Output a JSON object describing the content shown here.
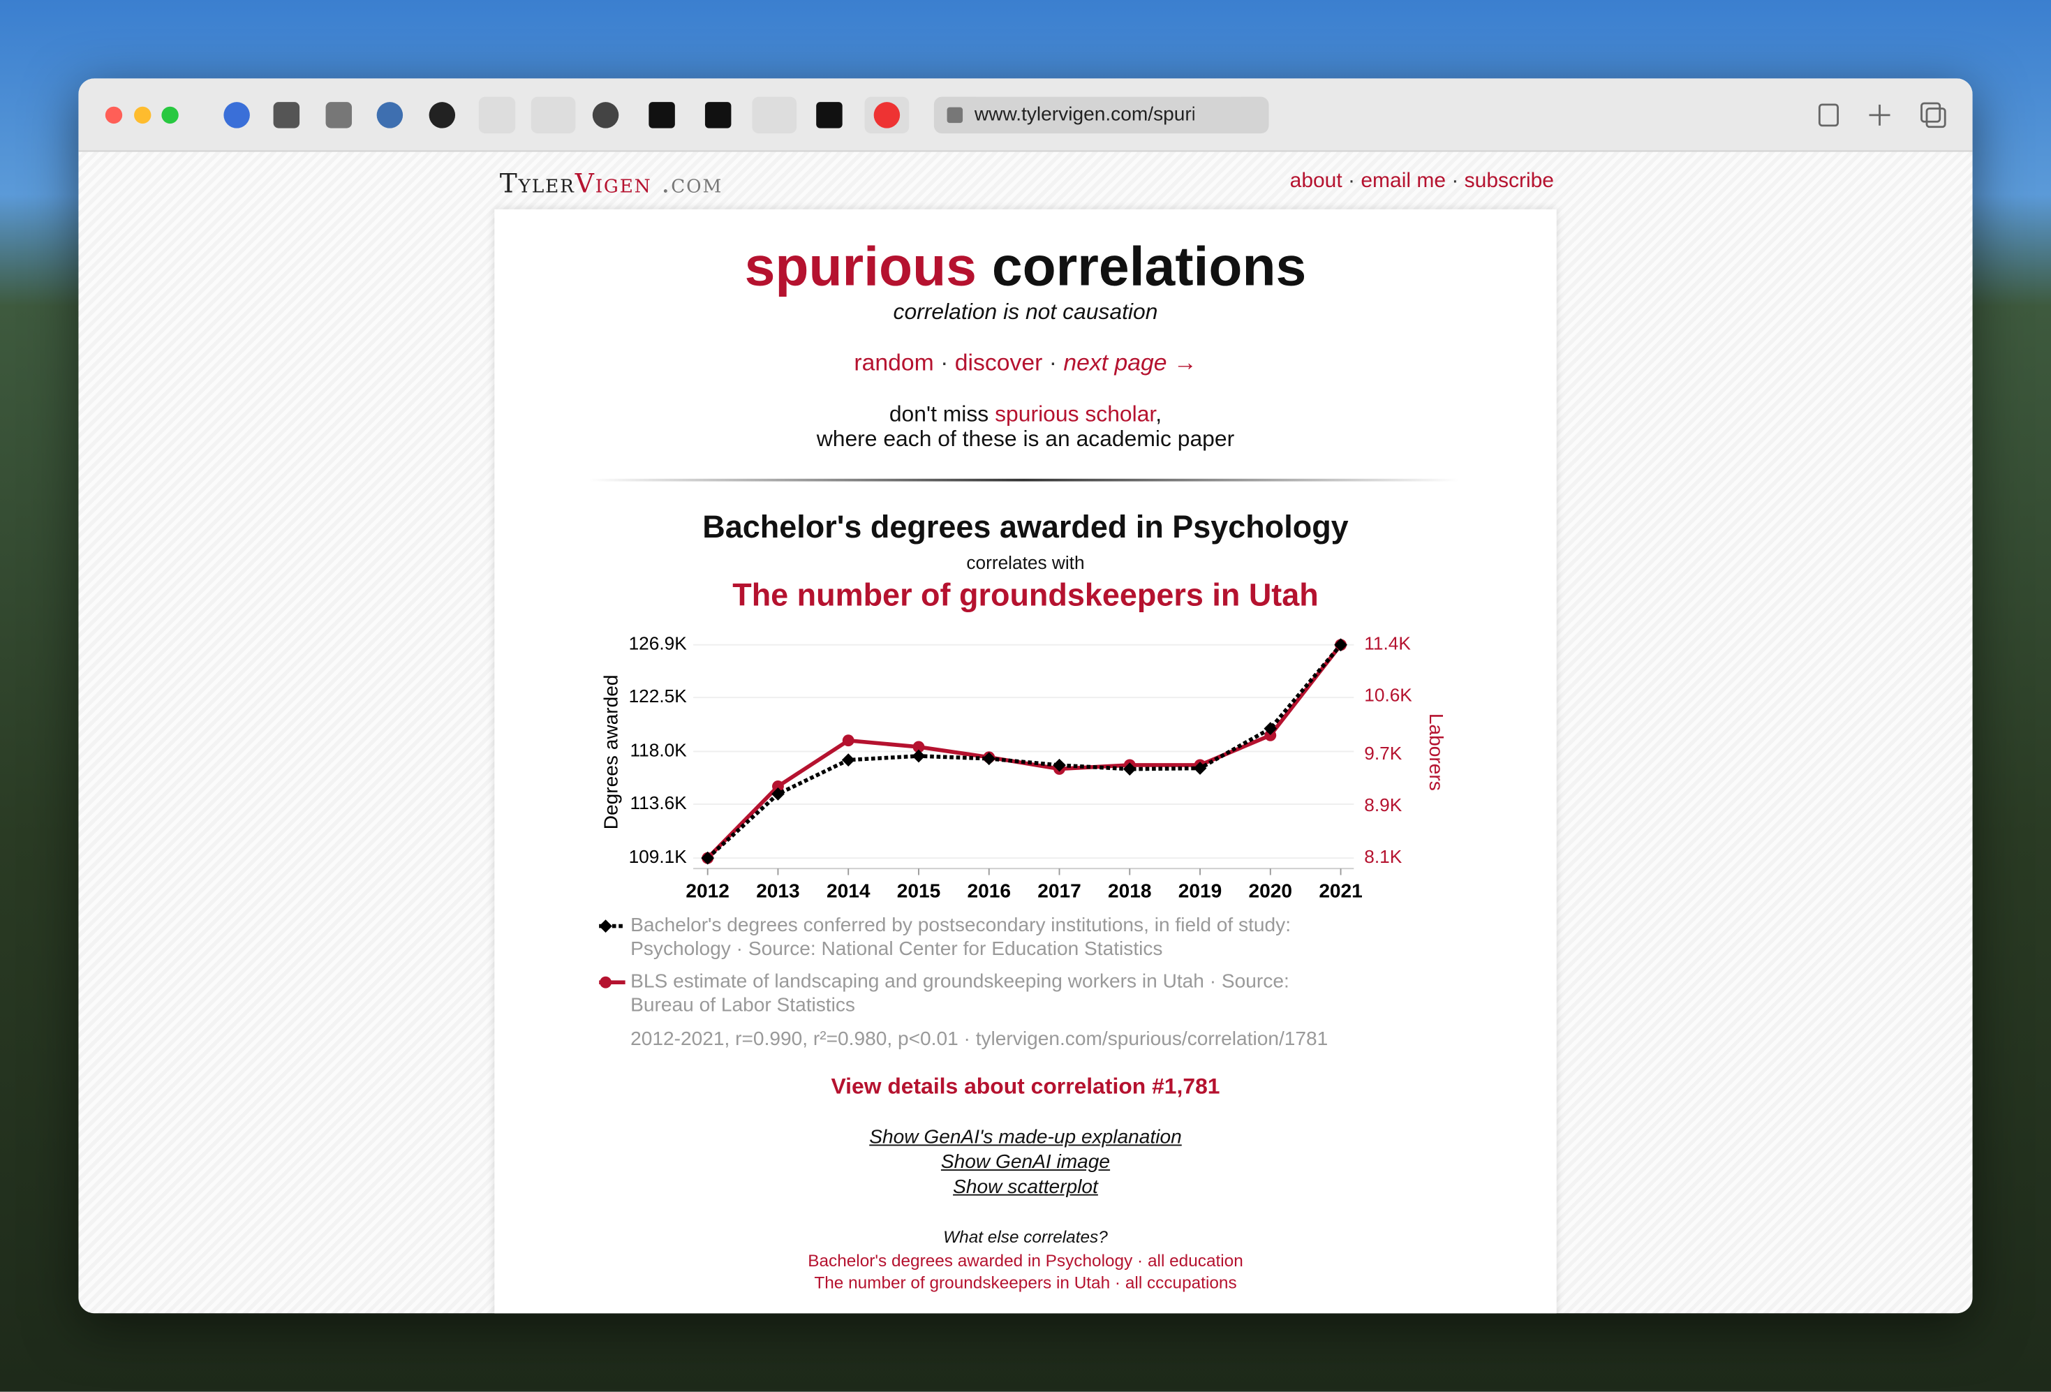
{
  "browser": {
    "url": "www.tylervigen.com/spuri"
  },
  "site": {
    "logo_first": "Tyler",
    "logo_second": "Vigen",
    "logo_domain": ".com",
    "nav": [
      "about",
      "email me",
      "subscribe"
    ],
    "separator": "·"
  },
  "header": {
    "title_accent": "spurious",
    "title_rest": "correlations",
    "tagline": "correlation is not causation",
    "links": [
      "random",
      "discover",
      "next page →"
    ],
    "promo_before": "don't miss",
    "promo_link": "spurious scholar",
    "promo_after": ",",
    "promo_line2": "where each of these is an academic paper"
  },
  "chart_data": {
    "type": "line",
    "title": "Bachelor's degrees awarded in Psychology",
    "subtitle": "correlates with",
    "title2": "The number of groundskeepers in Utah",
    "ylabel": "Degrees awarded",
    "y2label": "Laborers",
    "x": [
      2012,
      2013,
      2014,
      2015,
      2016,
      2017,
      2018,
      2019,
      2020,
      2021
    ],
    "xlim": [
      2012,
      2021
    ],
    "xticks": [
      2012,
      2013,
      2014,
      2015,
      2016,
      2017,
      2018,
      2019,
      2020,
      2021
    ],
    "ylim": [
      109100,
      126900
    ],
    "yticks": [
      {
        "value": 126900,
        "label": "126.9K"
      },
      {
        "value": 122500,
        "label": "122.5K"
      },
      {
        "value": 118000,
        "label": "118.0K"
      },
      {
        "value": 113600,
        "label": "113.6K"
      },
      {
        "value": 109100,
        "label": "109.1K"
      }
    ],
    "y2lim": [
      8100,
      11400
    ],
    "y2ticks": [
      {
        "value": 11400,
        "label": "11.4K"
      },
      {
        "value": 10600,
        "label": "10.6K"
      },
      {
        "value": 9700,
        "label": "9.7K"
      },
      {
        "value": 8900,
        "label": "8.9K"
      },
      {
        "value": 8100,
        "label": "8.1K"
      }
    ],
    "grid": true,
    "series": [
      {
        "name": "Bachelor's degrees conferred by postsecondary institutions, in field of study: Psychology · Source: National Center for Education Statistics",
        "color": "#000000",
        "values": [
          109100,
          114450,
          117290,
          117620,
          117400,
          116850,
          116530,
          116600,
          119910,
          126900
        ]
      },
      {
        "name": "BLS estimate of landscaping and groundskeeping workers in Utah · Source: Bureau of Labor Statistics",
        "color": "#b5122f",
        "axis": "y2",
        "values": [
          8100,
          9210,
          9920,
          9820,
          9660,
          9480,
          9540,
          9540,
          10000,
          11400
        ]
      }
    ],
    "stats": "2012-2021, r=0.990, r²=0.980, p<0.01 · tylervigen.com/spurious/correlation/1781"
  },
  "footer": {
    "details": "View details about correlation #1,781",
    "toggles": [
      "Show GenAI's made-up explanation",
      "Show GenAI image",
      "Show scatterplot"
    ],
    "more_heading": "What else correlates?",
    "more": [
      [
        "Bachelor's degrees awarded in Psychology",
        "all education"
      ],
      [
        "The number of groundskeepers in Utah",
        "all cccupations"
      ]
    ]
  }
}
